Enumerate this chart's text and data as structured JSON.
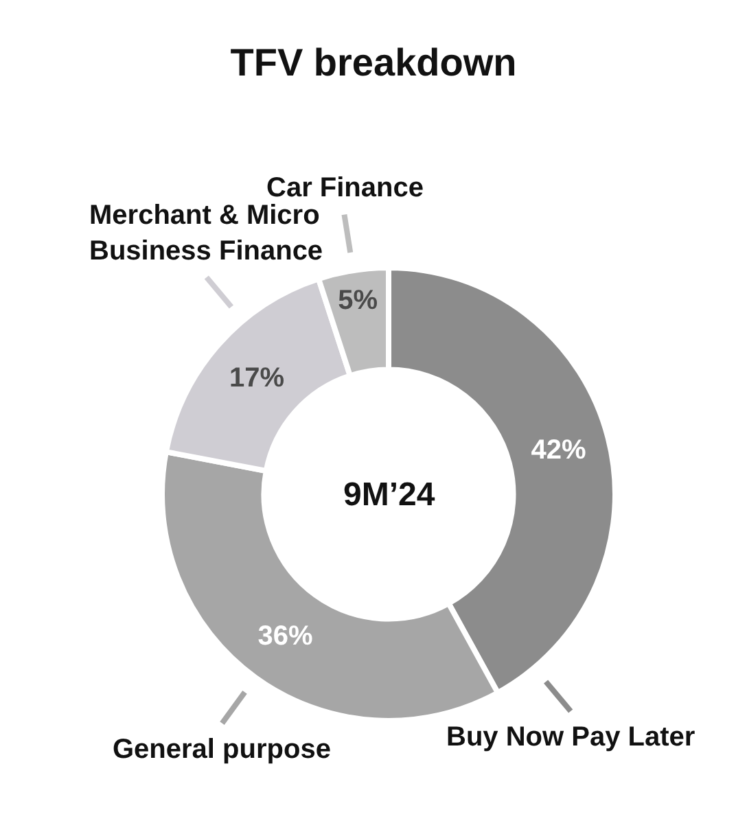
{
  "chart_data": {
    "type": "donut",
    "title": "TFV breakdown",
    "categories": [
      "Buy Now Pay Later",
      "General purpose",
      "Merchant & Micro\nBusiness Finance",
      "Car Finance"
    ],
    "values": [
      42,
      36,
      17,
      5
    ],
    "value_labels": [
      "42%",
      "36%",
      "17%",
      "5%"
    ],
    "colors": [
      "#8c8c8c",
      "#a6a6a6",
      "#cfcdd3",
      "#bdbdbd"
    ],
    "annotations": [
      "9M’24"
    ]
  }
}
